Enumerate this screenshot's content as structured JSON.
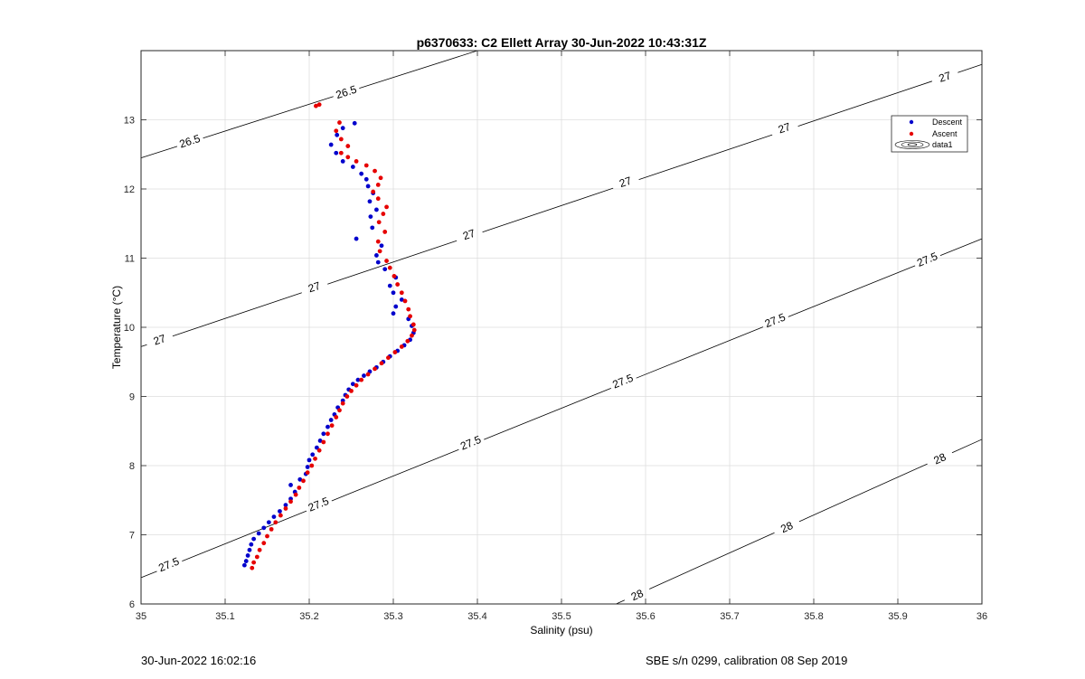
{
  "chart_data": {
    "type": "scatter",
    "title": "p6370633: C2 Ellett Array 30-Jun-2022 10:43:31Z",
    "xlabel": "Salinity (psu)",
    "ylabel": "Temperature (°C)",
    "xlim": [
      35,
      36
    ],
    "ylim": [
      6,
      14
    ],
    "xticks": [
      35,
      35.1,
      35.2,
      35.3,
      35.4,
      35.5,
      35.6,
      35.7,
      35.8,
      35.9,
      36
    ],
    "xtick_labels": [
      "35",
      "35.1",
      "35.2",
      "35.3",
      "35.4",
      "35.5",
      "35.6",
      "35.7",
      "35.8",
      "35.9",
      "36"
    ],
    "yticks": [
      6,
      7,
      8,
      9,
      10,
      11,
      12,
      13
    ],
    "ytick_labels": [
      "6",
      "7",
      "8",
      "9",
      "10",
      "11",
      "12",
      "13"
    ],
    "grid": true,
    "legend_position": "top-right",
    "legend": [
      "Descent",
      "Ascent",
      "data1"
    ],
    "series": [
      {
        "name": "Descent",
        "color": "#0000cc",
        "points": [
          [
            35.123,
            6.56
          ],
          [
            35.125,
            6.62
          ],
          [
            35.127,
            6.7
          ],
          [
            35.129,
            6.78
          ],
          [
            35.131,
            6.86
          ],
          [
            35.134,
            6.94
          ],
          [
            35.14,
            7.02
          ],
          [
            35.146,
            7.1
          ],
          [
            35.152,
            7.18
          ],
          [
            35.158,
            7.26
          ],
          [
            35.165,
            7.34
          ],
          [
            35.172,
            7.43
          ],
          [
            35.178,
            7.52
          ],
          [
            35.183,
            7.62
          ],
          [
            35.178,
            7.72
          ],
          [
            35.189,
            7.8
          ],
          [
            35.196,
            7.88
          ],
          [
            35.198,
            7.98
          ],
          [
            35.2,
            8.08
          ],
          [
            35.204,
            8.16
          ],
          [
            35.209,
            8.26
          ],
          [
            35.213,
            8.36
          ],
          [
            35.217,
            8.46
          ],
          [
            35.222,
            8.56
          ],
          [
            35.226,
            8.66
          ],
          [
            35.23,
            8.74
          ],
          [
            35.234,
            8.84
          ],
          [
            35.24,
            8.94
          ],
          [
            35.243,
            9.02
          ],
          [
            35.247,
            9.1
          ],
          [
            35.252,
            9.18
          ],
          [
            35.258,
            9.24
          ],
          [
            35.265,
            9.3
          ],
          [
            35.272,
            9.36
          ],
          [
            35.28,
            9.42
          ],
          [
            35.288,
            9.5
          ],
          [
            35.296,
            9.58
          ],
          [
            35.305,
            9.66
          ],
          [
            35.313,
            9.74
          ],
          [
            35.32,
            9.82
          ],
          [
            35.324,
            9.92
          ],
          [
            35.322,
            10.02
          ],
          [
            35.318,
            10.12
          ],
          [
            35.3,
            10.2
          ],
          [
            35.303,
            10.3
          ],
          [
            35.31,
            10.4
          ],
          [
            35.3,
            10.5
          ],
          [
            35.296,
            10.6
          ],
          [
            35.303,
            10.72
          ],
          [
            35.29,
            10.84
          ],
          [
            35.282,
            10.94
          ],
          [
            35.28,
            11.04
          ],
          [
            35.286,
            11.18
          ],
          [
            35.256,
            11.28
          ],
          [
            35.275,
            11.44
          ],
          [
            35.273,
            11.6
          ],
          [
            35.28,
            11.7
          ],
          [
            35.272,
            11.82
          ],
          [
            35.276,
            11.94
          ],
          [
            35.27,
            12.04
          ],
          [
            35.268,
            12.14
          ],
          [
            35.262,
            12.22
          ],
          [
            35.252,
            12.32
          ],
          [
            35.24,
            12.4
          ],
          [
            35.232,
            12.52
          ],
          [
            35.226,
            12.64
          ],
          [
            35.233,
            12.78
          ],
          [
            35.24,
            12.88
          ],
          [
            35.254,
            12.95
          ]
        ]
      },
      {
        "name": "Ascent",
        "color": "#e60000",
        "points": [
          [
            35.132,
            6.52
          ],
          [
            35.134,
            6.6
          ],
          [
            35.138,
            6.68
          ],
          [
            35.141,
            6.78
          ],
          [
            35.146,
            6.88
          ],
          [
            35.15,
            6.98
          ],
          [
            35.155,
            7.08
          ],
          [
            35.16,
            7.18
          ],
          [
            35.166,
            7.28
          ],
          [
            35.172,
            7.38
          ],
          [
            35.178,
            7.48
          ],
          [
            35.184,
            7.58
          ],
          [
            35.188,
            7.68
          ],
          [
            35.193,
            7.78
          ],
          [
            35.198,
            7.9
          ],
          [
            35.203,
            8.0
          ],
          [
            35.207,
            8.1
          ],
          [
            35.212,
            8.22
          ],
          [
            35.217,
            8.34
          ],
          [
            35.222,
            8.46
          ],
          [
            35.227,
            8.58
          ],
          [
            35.232,
            8.7
          ],
          [
            35.236,
            8.8
          ],
          [
            35.24,
            8.9
          ],
          [
            35.245,
            9.0
          ],
          [
            35.25,
            9.08
          ],
          [
            35.256,
            9.16
          ],
          [
            35.262,
            9.24
          ],
          [
            35.27,
            9.32
          ],
          [
            35.278,
            9.4
          ],
          [
            35.286,
            9.48
          ],
          [
            35.294,
            9.56
          ],
          [
            35.302,
            9.64
          ],
          [
            35.31,
            9.72
          ],
          [
            35.317,
            9.8
          ],
          [
            35.322,
            9.88
          ],
          [
            35.325,
            9.96
          ],
          [
            35.324,
            10.04
          ],
          [
            35.32,
            10.16
          ],
          [
            35.318,
            10.26
          ],
          [
            35.314,
            10.38
          ],
          [
            35.31,
            10.5
          ],
          [
            35.305,
            10.62
          ],
          [
            35.301,
            10.74
          ],
          [
            35.296,
            10.86
          ],
          [
            35.292,
            10.96
          ],
          [
            35.284,
            11.1
          ],
          [
            35.282,
            11.24
          ],
          [
            35.29,
            11.38
          ],
          [
            35.283,
            11.52
          ],
          [
            35.288,
            11.64
          ],
          [
            35.292,
            11.74
          ],
          [
            35.282,
            11.86
          ],
          [
            35.276,
            11.96
          ],
          [
            35.282,
            12.06
          ],
          [
            35.285,
            12.16
          ],
          [
            35.278,
            12.26
          ],
          [
            35.268,
            12.34
          ],
          [
            35.256,
            12.4
          ],
          [
            35.246,
            12.46
          ],
          [
            35.238,
            12.52
          ],
          [
            35.246,
            12.62
          ],
          [
            35.238,
            12.72
          ],
          [
            35.232,
            12.84
          ],
          [
            35.236,
            12.96
          ],
          [
            35.208,
            13.2
          ],
          [
            35.212,
            13.22
          ]
        ]
      }
    ],
    "contours": [
      {
        "level": "26.5",
        "points": [
          [
            35.0,
            12.45
          ],
          [
            35.4,
            14.0
          ]
        ],
        "labels": [
          [
            35.058,
            12.69
          ],
          [
            35.244,
            13.4
          ]
        ]
      },
      {
        "level": "27",
        "points": [
          [
            35.0,
            9.72
          ],
          [
            36.0,
            13.8
          ]
        ],
        "labels": [
          [
            35.022,
            9.82
          ],
          [
            35.206,
            10.58
          ],
          [
            35.39,
            11.34
          ],
          [
            35.576,
            12.1
          ],
          [
            35.765,
            12.88
          ],
          [
            35.956,
            13.62
          ]
        ]
      },
      {
        "level": "27.5",
        "points": [
          [
            35.0,
            6.38
          ],
          [
            36.0,
            11.28
          ]
        ],
        "labels": [
          [
            35.033,
            6.57
          ],
          [
            35.211,
            7.44
          ],
          [
            35.392,
            8.33
          ],
          [
            35.573,
            9.22
          ],
          [
            35.754,
            10.1
          ],
          [
            35.935,
            10.98
          ]
        ]
      },
      {
        "level": "28",
        "points": [
          [
            35.565,
            6.0
          ],
          [
            36.0,
            8.38
          ]
        ],
        "labels": [
          [
            35.59,
            6.13
          ],
          [
            35.768,
            7.11
          ],
          [
            35.95,
            8.1
          ]
        ]
      }
    ]
  },
  "footer": {
    "left": "30-Jun-2022 16:02:16",
    "right": "SBE s/n 0299, calibration 08 Sep 2019"
  }
}
